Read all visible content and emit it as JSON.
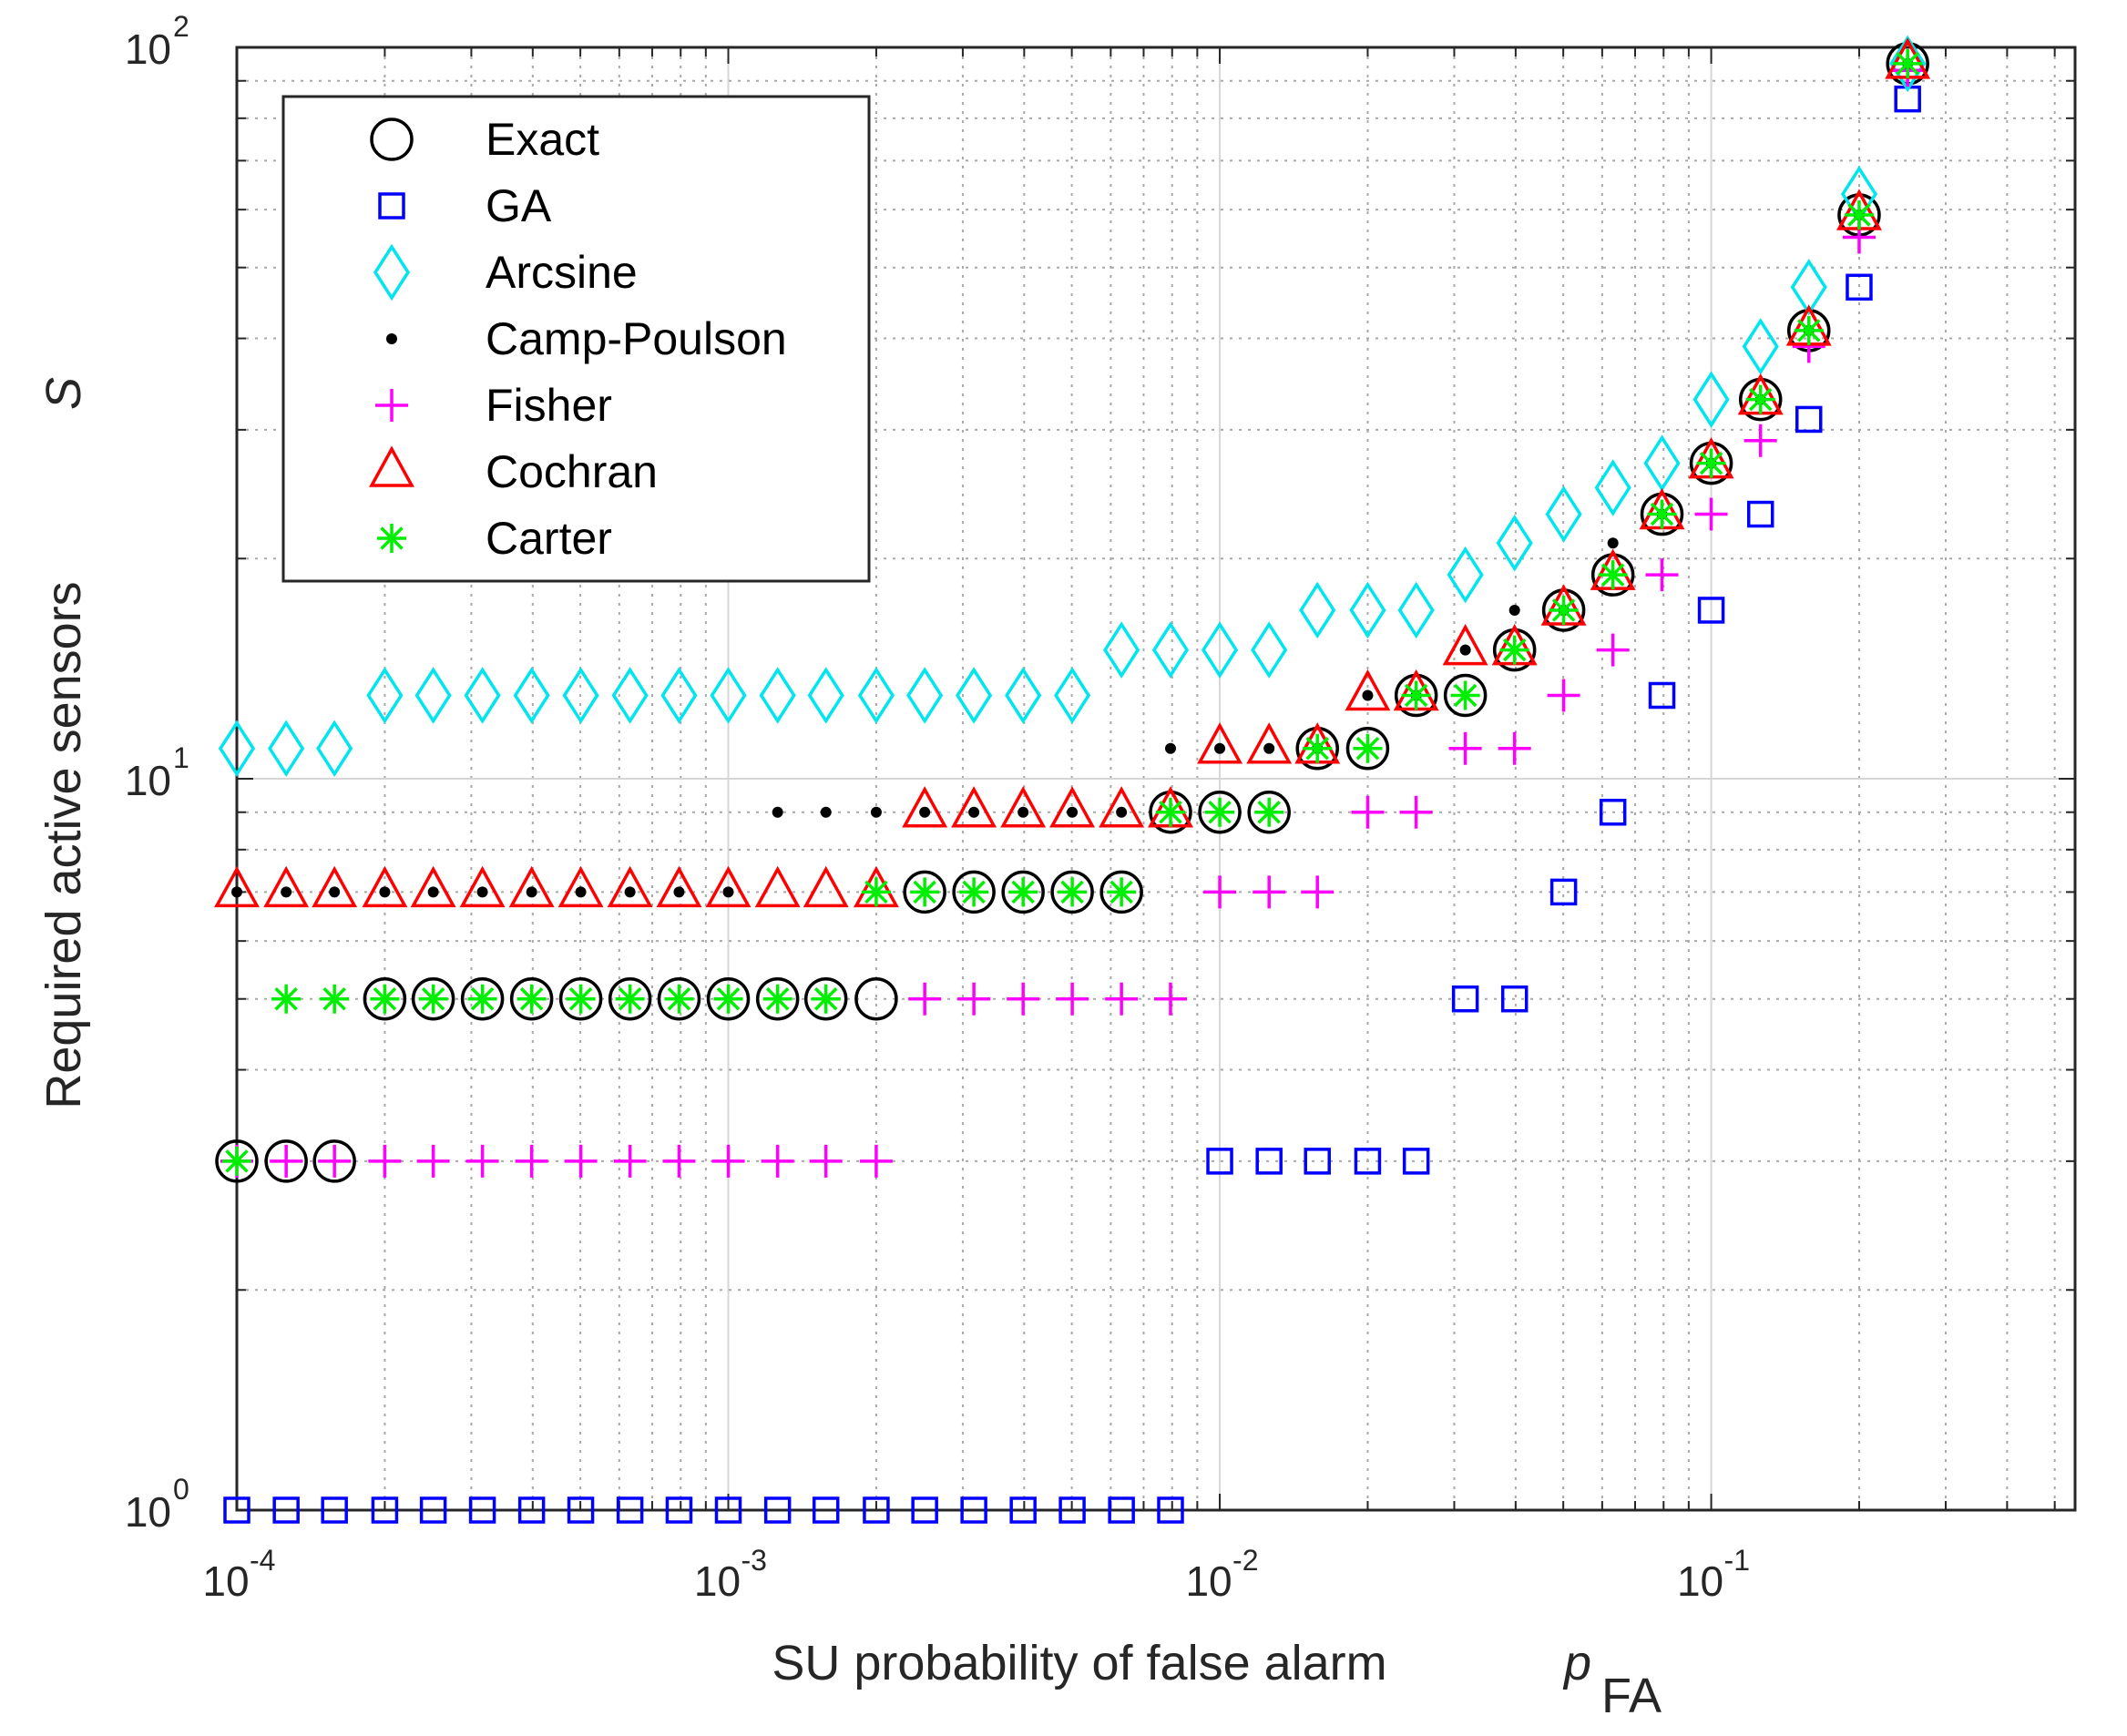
{
  "chart_data": {
    "type": "scatter",
    "xscale": "log",
    "yscale": "log",
    "xlim": [
      0.0001,
      0.55
    ],
    "ylim": [
      1,
      100
    ],
    "xlabel": "SU probability of false alarm",
    "xlabel_symbol": "p",
    "xlabel_subscript": "FA",
    "ylabel": "Required active sensors",
    "ylabel_symbol": "S",
    "grid": true,
    "legend_position": "top-left",
    "x_ticks": [
      {
        "value": 0.0001,
        "base": "10",
        "exp": "-4"
      },
      {
        "value": 0.001,
        "base": "10",
        "exp": "-3"
      },
      {
        "value": 0.01,
        "base": "10",
        "exp": "-2"
      },
      {
        "value": 0.1,
        "base": "10",
        "exp": "-1"
      }
    ],
    "y_ticks": [
      {
        "value": 1,
        "base": "10",
        "exp": "0"
      },
      {
        "value": 10,
        "base": "10",
        "exp": "1"
      },
      {
        "value": 100,
        "base": "10",
        "exp": "2"
      }
    ],
    "x": [
      0.0001,
      0.000126,
      0.000158,
      0.0002,
      0.000251,
      0.000316,
      0.000398,
      0.000501,
      0.000631,
      0.000794,
      0.001,
      0.00126,
      0.00158,
      0.002,
      0.00251,
      0.00316,
      0.00398,
      0.00501,
      0.00631,
      0.00794,
      0.01,
      0.0126,
      0.0158,
      0.02,
      0.0251,
      0.0316,
      0.0398,
      0.0501,
      0.0631,
      0.0794,
      0.1,
      0.126,
      0.158,
      0.2,
      0.251
    ],
    "series": [
      {
        "name": "Exact",
        "marker": "circle",
        "color": "#000000",
        "values": [
          3,
          3,
          3,
          5,
          5,
          5,
          5,
          5,
          5,
          5,
          5,
          5,
          5,
          5,
          7,
          7,
          7,
          7,
          7,
          9,
          9,
          9,
          11,
          11,
          13,
          13,
          15,
          17,
          19,
          23,
          27,
          33,
          41,
          59,
          95
        ]
      },
      {
        "name": "GA",
        "marker": "square",
        "color": "#0000ff",
        "values": [
          1,
          1,
          1,
          1,
          1,
          1,
          1,
          1,
          1,
          1,
          1,
          1,
          1,
          1,
          1,
          1,
          1,
          1,
          1,
          1,
          3,
          3,
          3,
          3,
          3,
          5,
          5,
          7,
          9,
          13,
          17,
          23,
          31,
          47,
          85
        ]
      },
      {
        "name": "Arcsine",
        "marker": "diamond",
        "color": "#00e5ee",
        "values": [
          11,
          11,
          11,
          13,
          13,
          13,
          13,
          13,
          13,
          13,
          13,
          13,
          13,
          13,
          13,
          13,
          13,
          13,
          15,
          15,
          15,
          15,
          17,
          17,
          17,
          19,
          21,
          23,
          25,
          27,
          33,
          39,
          47,
          63,
          95
        ]
      },
      {
        "name": "Camp-Poulson",
        "marker": "dot",
        "color": "#000000",
        "values": [
          7,
          7,
          7,
          7,
          7,
          7,
          7,
          7,
          7,
          7,
          7,
          9,
          9,
          9,
          9,
          9,
          9,
          9,
          9,
          11,
          11,
          11,
          11,
          13,
          13,
          15,
          17,
          17,
          21,
          23,
          27,
          33,
          41,
          59,
          95
        ]
      },
      {
        "name": "Fisher",
        "marker": "plus",
        "color": "#ff00ff",
        "values": [
          3,
          3,
          3,
          3,
          3,
          3,
          3,
          3,
          3,
          3,
          3,
          3,
          3,
          3,
          5,
          5,
          5,
          5,
          5,
          5,
          7,
          7,
          7,
          9,
          9,
          11,
          11,
          13,
          15,
          19,
          23,
          29,
          39,
          55,
          93
        ]
      },
      {
        "name": "Cochran",
        "marker": "triangle",
        "color": "#ff0000",
        "values": [
          7,
          7,
          7,
          7,
          7,
          7,
          7,
          7,
          7,
          7,
          7,
          7,
          7,
          7,
          9,
          9,
          9,
          9,
          9,
          9,
          11,
          11,
          11,
          13,
          13,
          15,
          15,
          17,
          19,
          23,
          27,
          33,
          41,
          59,
          95
        ]
      },
      {
        "name": "Carter",
        "marker": "asterisk",
        "color": "#00ee00",
        "values": [
          3,
          5,
          5,
          5,
          5,
          5,
          5,
          5,
          5,
          5,
          5,
          5,
          5,
          7,
          7,
          7,
          7,
          7,
          7,
          9,
          9,
          9,
          11,
          11,
          13,
          13,
          15,
          17,
          19,
          23,
          27,
          33,
          41,
          59,
          95
        ]
      }
    ]
  }
}
